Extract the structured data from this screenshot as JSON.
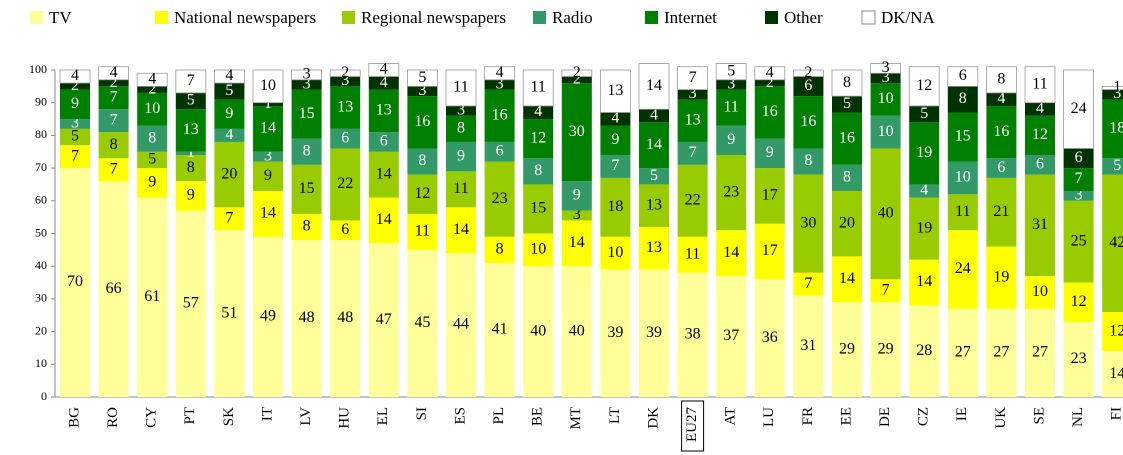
{
  "chart_data": {
    "type": "stacked_bar",
    "categories": [
      "BG",
      "RO",
      "CY",
      "PT",
      "SK",
      "IT",
      "LV",
      "HU",
      "EL",
      "SI",
      "ES",
      "PL",
      "BE",
      "MT",
      "LT",
      "DK",
      "EU27",
      "AT",
      "LU",
      "FR",
      "EE",
      "DE",
      "CZ",
      "IE",
      "UK",
      "SE",
      "NL",
      "FI"
    ],
    "series": [
      {
        "name": "TV",
        "color": "#ffff99",
        "values": [
          70,
          66,
          61,
          57,
          51,
          49,
          48,
          48,
          47,
          45,
          44,
          41,
          40,
          40,
          39,
          39,
          38,
          37,
          36,
          31,
          29,
          29,
          28,
          27,
          27,
          27,
          23,
          14
        ]
      },
      {
        "name": "National newspapers",
        "color": "#ffff00",
        "values": [
          7,
          7,
          9,
          9,
          7,
          14,
          8,
          6,
          14,
          11,
          14,
          8,
          10,
          14,
          10,
          13,
          11,
          14,
          17,
          7,
          14,
          7,
          14,
          24,
          19,
          10,
          12,
          12
        ]
      },
      {
        "name": "Regional newspapers",
        "color": "#99cc00",
        "values": [
          5,
          8,
          5,
          8,
          20,
          9,
          15,
          22,
          14,
          12,
          11,
          23,
          15,
          3,
          18,
          13,
          22,
          23,
          17,
          30,
          20,
          40,
          19,
          11,
          21,
          31,
          25,
          42
        ]
      },
      {
        "name": "Radio",
        "color": "#339966",
        "values": [
          3,
          7,
          8,
          1,
          4,
          3,
          8,
          6,
          6,
          8,
          9,
          6,
          8,
          9,
          7,
          5,
          7,
          9,
          9,
          8,
          8,
          10,
          4,
          10,
          6,
          6,
          3,
          5
        ]
      },
      {
        "name": "Internet",
        "color": "#008000",
        "values": [
          9,
          7,
          10,
          13,
          9,
          14,
          15,
          13,
          13,
          16,
          8,
          16,
          12,
          30,
          9,
          14,
          13,
          11,
          16,
          16,
          16,
          10,
          19,
          15,
          16,
          12,
          7,
          18
        ]
      },
      {
        "name": "Other",
        "color": "#003300",
        "values": [
          2,
          2,
          2,
          5,
          5,
          1,
          3,
          3,
          4,
          3,
          3,
          3,
          4,
          2,
          4,
          4,
          3,
          3,
          2,
          6,
          5,
          3,
          5,
          8,
          4,
          4,
          6,
          3
        ]
      },
      {
        "name": "DK/NA",
        "color": "#ffffff",
        "values": [
          4,
          4,
          4,
          7,
          4,
          10,
          3,
          2,
          4,
          5,
          11,
          4,
          11,
          2,
          13,
          14,
          7,
          5,
          4,
          2,
          8,
          3,
          12,
          6,
          8,
          11,
          24,
          1
        ]
      }
    ],
    "ylim": [
      0,
      100
    ],
    "yticks": [
      0,
      10,
      20,
      30,
      40,
      50,
      60,
      70,
      80,
      90,
      100
    ]
  }
}
